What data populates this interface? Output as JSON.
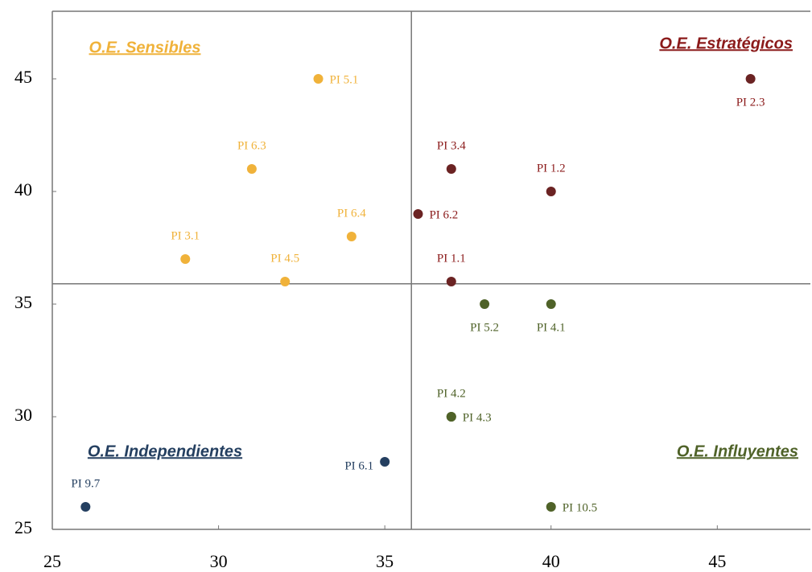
{
  "chart_data": {
    "type": "scatter",
    "xlim": [
      25,
      47.8
    ],
    "ylim": [
      25,
      48
    ],
    "xticks": [
      25,
      30,
      35,
      40,
      45
    ],
    "yticks": [
      25,
      30,
      35,
      40,
      45
    ],
    "quadrant_lines": {
      "x": 35.8,
      "y": 35.9
    },
    "series": [
      {
        "name": "O.E. Sensibles",
        "corner": "top-left",
        "color": "#f0b23a",
        "label_color": "#f0b23a",
        "x": [
          33,
          31,
          34,
          29,
          32
        ],
        "values": [
          45,
          41,
          38,
          37,
          36
        ],
        "labels": [
          "PI 5.1",
          "PI 6.3",
          "PI 6.4",
          "PI 3.1",
          "PI 4.5"
        ],
        "label_pos": [
          "right",
          "above",
          "above",
          "above",
          "above"
        ]
      },
      {
        "name": "O.E. Estratégicos",
        "corner": "top-right",
        "color": "#6b2323",
        "label_color": "#8b1a1a",
        "x": [
          46,
          37,
          40,
          36,
          37
        ],
        "values": [
          45,
          41,
          40,
          39,
          36
        ],
        "labels": [
          "PI 2.3",
          "PI 3.4",
          "PI 1.2",
          "PI 6.2",
          "PI 1.1"
        ],
        "label_pos": [
          "below",
          "above",
          "above",
          "right",
          "above"
        ]
      },
      {
        "name": "O.E. Independientes",
        "corner": "bottom-left",
        "color": "#243f60",
        "label_color": "#243f60",
        "x": [
          35,
          26
        ],
        "values": [
          28,
          26
        ],
        "labels": [
          "PI 6.1",
          "PI 9.7"
        ],
        "label_pos": [
          "left",
          "above"
        ]
      },
      {
        "name": "O.E. Influyentes",
        "corner": "bottom-right",
        "color": "#4f6228",
        "label_color": "#4f6228",
        "x": [
          38,
          40,
          37,
          37,
          40
        ],
        "values": [
          35,
          35,
          30,
          30,
          26
        ],
        "labels": [
          "PI 5.2",
          "PI 4.1",
          "PI 4.2",
          "PI 4.3",
          "PI 10.5"
        ],
        "label_pos": [
          "below",
          "below",
          "above",
          "right",
          "right"
        ]
      }
    ]
  }
}
